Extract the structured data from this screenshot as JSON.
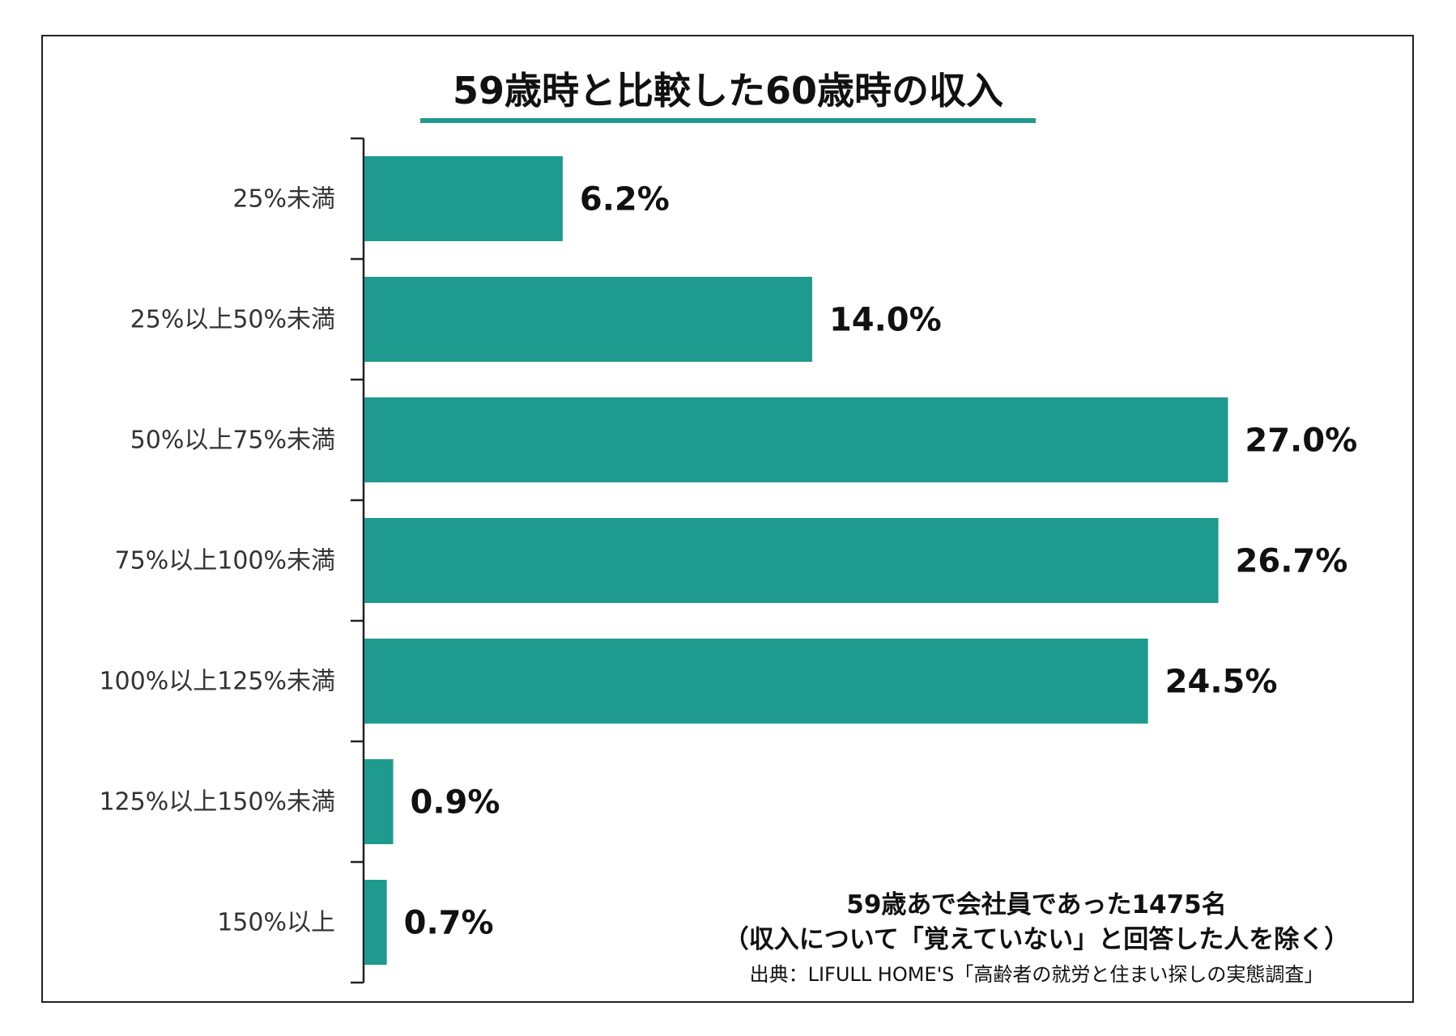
{
  "chart_data": {
    "type": "bar",
    "orientation": "horizontal",
    "title": "59歳時と比較した60歳時の収入",
    "categories": [
      "25%未満",
      "25%以上50%未満",
      "50%以上75%未満",
      "75%以上100%未満",
      "100%以上125%未満",
      "125%以上150%未満",
      "150%以上"
    ],
    "values": [
      6.2,
      14.0,
      27.0,
      26.7,
      24.5,
      0.9,
      0.7
    ],
    "value_labels": [
      "6.2%",
      "14.0%",
      "27.0%",
      "26.7%",
      "24.5%",
      "0.9%",
      "0.7%"
    ],
    "xlabel": "",
    "ylabel": "",
    "xlim": [
      0,
      27.8
    ],
    "grid": false,
    "bar_color": "#1f9a8e",
    "title_underline_color": "#1f9a8e"
  },
  "notes": {
    "line1": "59歳あで会社員であった1475名",
    "line2": "（収入について「覚えていない」と回答した人を除く）",
    "source": "出典：LIFULL HOME'S「高齢者の就労と住まい探しの実態調査」"
  }
}
